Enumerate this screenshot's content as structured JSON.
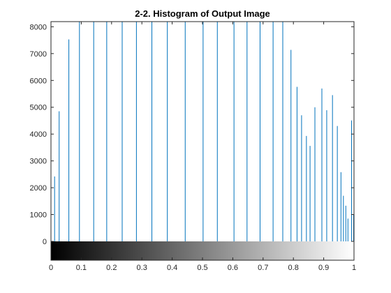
{
  "chart_data": {
    "type": "bar",
    "title": "2-2. Histogram of Output Image",
    "xlabel": "",
    "ylabel": "",
    "xlim": [
      0,
      1
    ],
    "ylim": [
      0,
      8192
    ],
    "xticks": [
      "0",
      "0.1",
      "0.2",
      "0.3",
      "0.4",
      "0.5",
      "0.6",
      "0.7",
      "0.8",
      "0.9",
      "1"
    ],
    "yticks": [
      "0",
      "1000",
      "2000",
      "3000",
      "4000",
      "5000",
      "6000",
      "7000",
      "8000"
    ],
    "grid": false,
    "legend": "none",
    "bar_color": "#0072BD",
    "colorbar": "grayscale 0 to 1",
    "bins": {
      "x": [
        0.012,
        0.027,
        0.059,
        0.094,
        0.141,
        0.184,
        0.235,
        0.282,
        0.333,
        0.384,
        0.443,
        0.502,
        0.549,
        0.604,
        0.647,
        0.69,
        0.733,
        0.765,
        0.792,
        0.812,
        0.827,
        0.843,
        0.855,
        0.871,
        0.894,
        0.91,
        0.929,
        0.945,
        0.957,
        0.965,
        0.973,
        0.98,
        0.992,
        1.0
      ],
      "values": [
        2420,
        4850,
        7530,
        8192,
        8192,
        8192,
        8192,
        8192,
        8192,
        8192,
        8192,
        8192,
        8192,
        8192,
        8192,
        8192,
        8192,
        8192,
        7140,
        5760,
        4700,
        3930,
        3560,
        5000,
        5700,
        4890,
        5450,
        4300,
        2580,
        1700,
        1330,
        850,
        4510,
        1000
      ]
    }
  }
}
